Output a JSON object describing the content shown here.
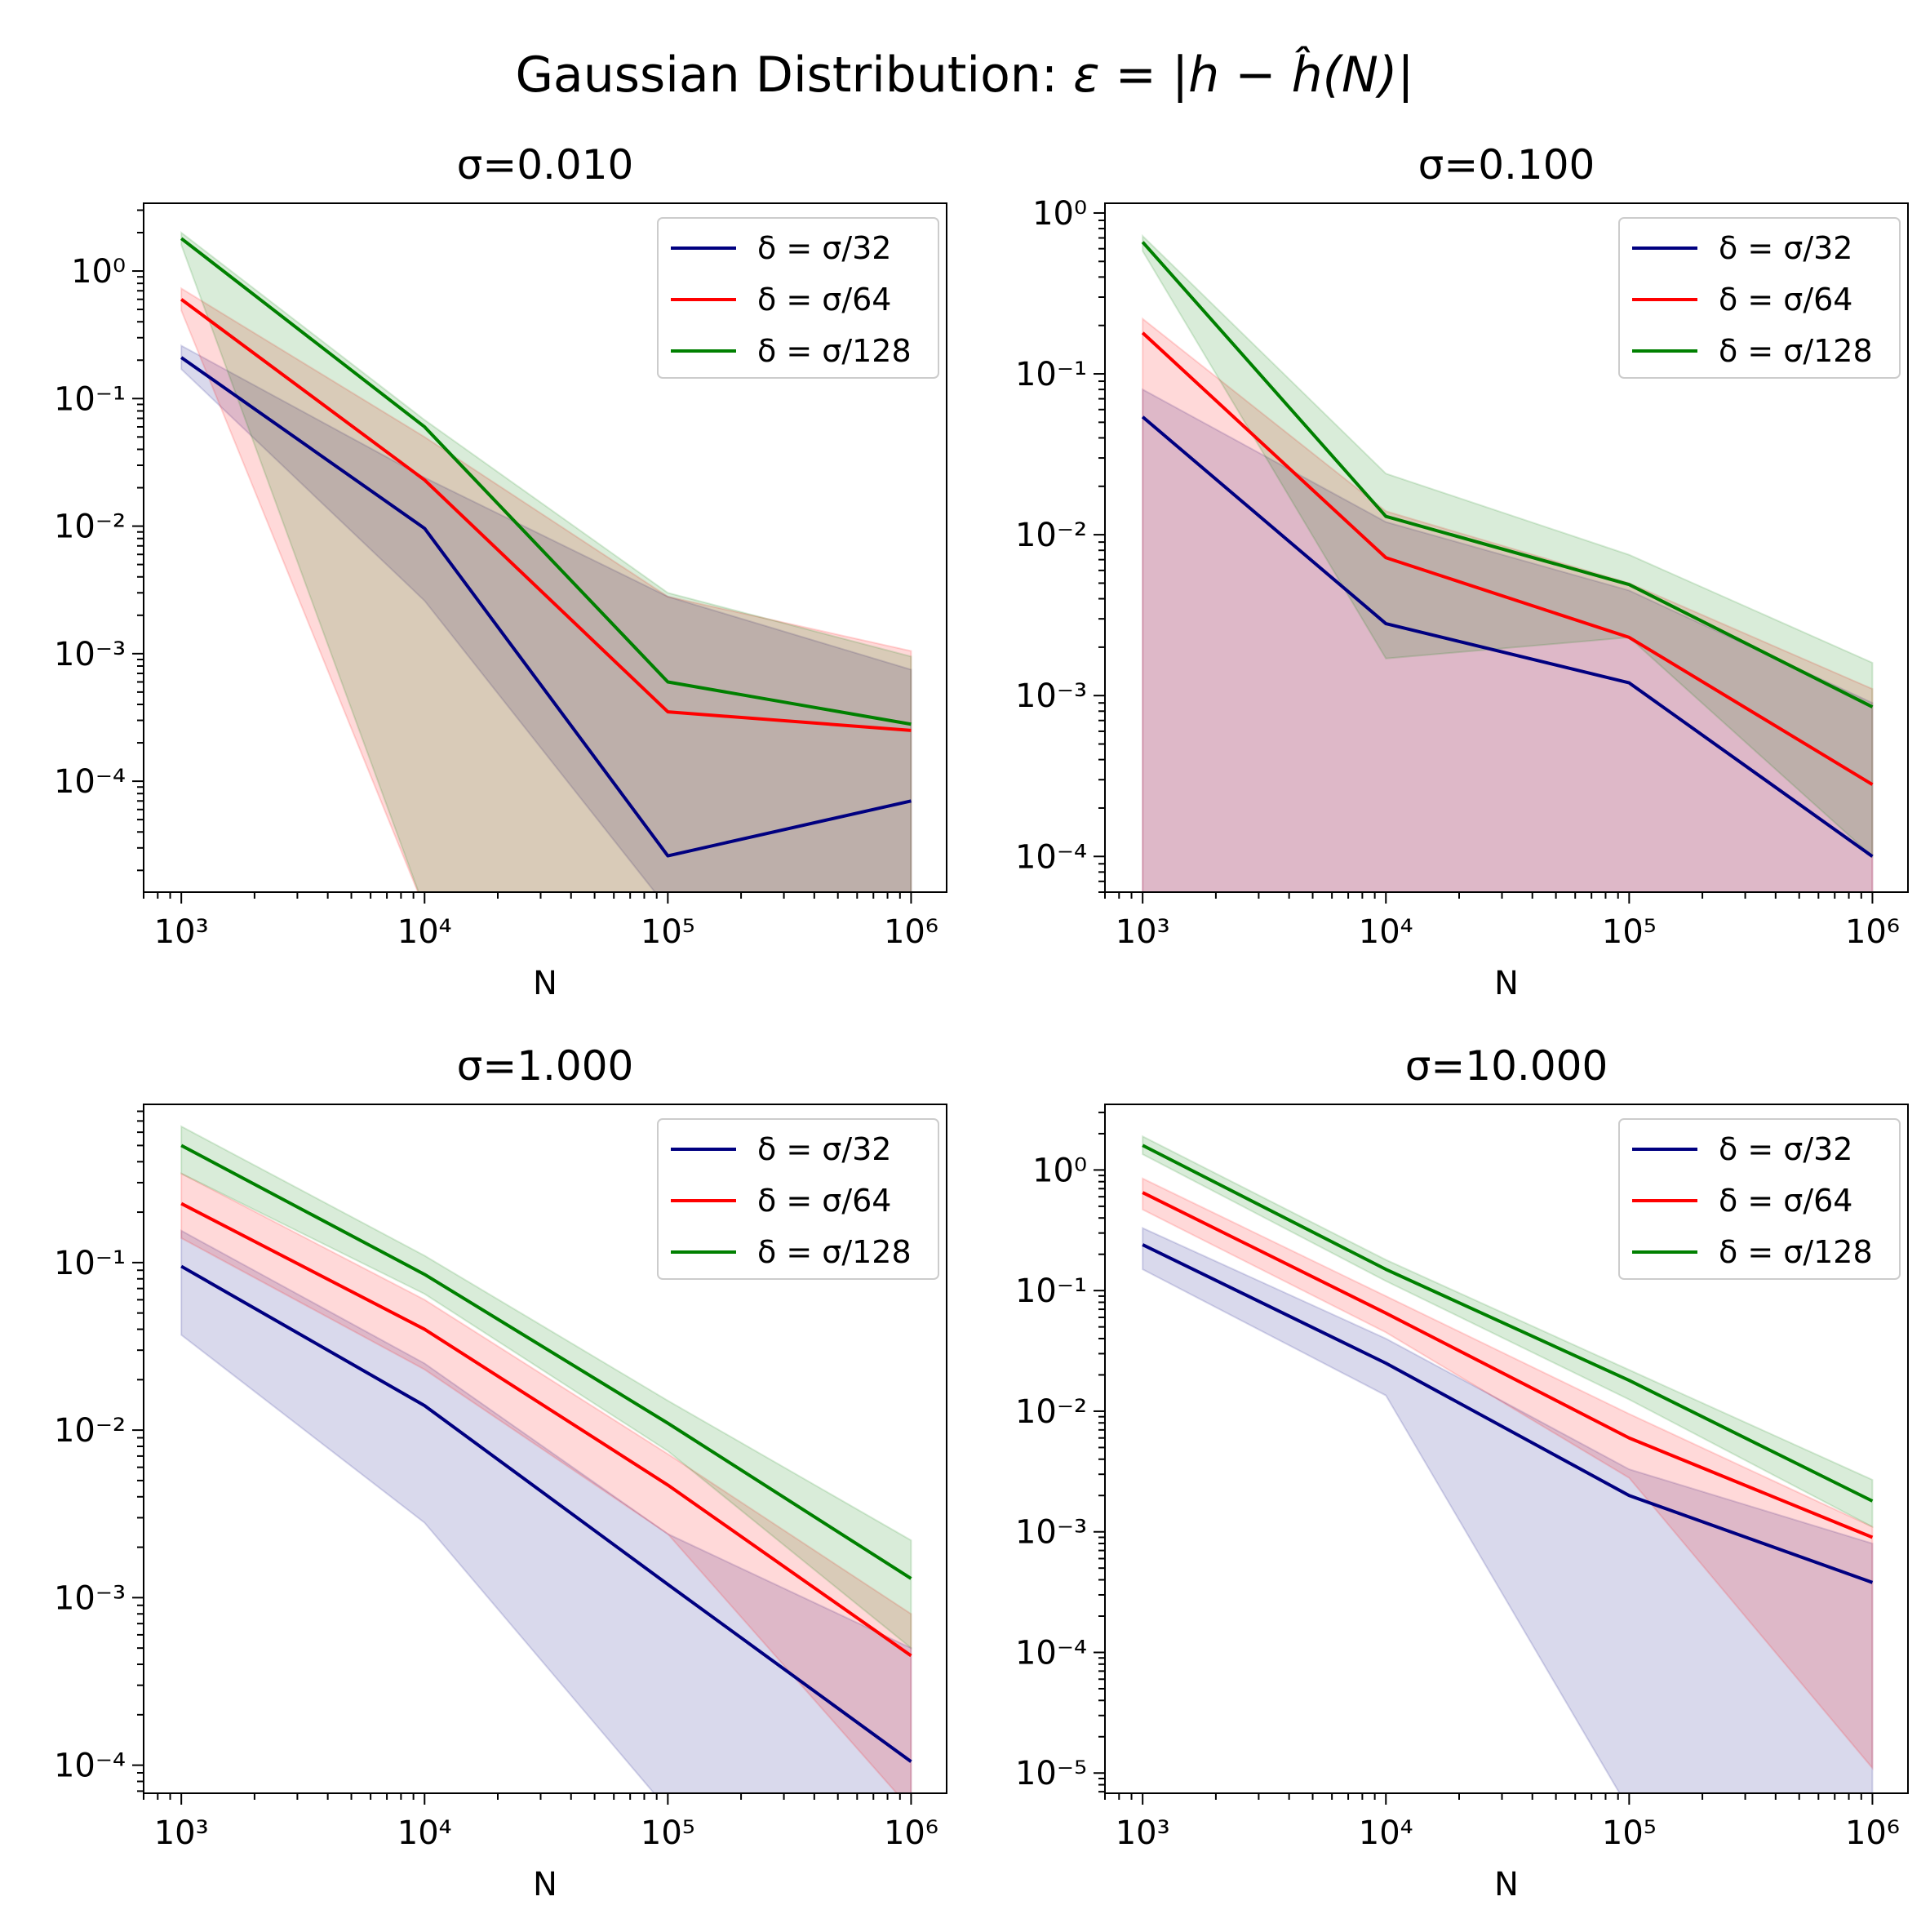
{
  "figure": {
    "title_prefix": "Gaussian Distribution: ",
    "title_math": "ε = |h − ĥ(N)|",
    "xlabel": "N"
  },
  "colors": {
    "d32": "#000080",
    "d64": "#ff0000",
    "d128": "#008000"
  },
  "chart_data": [
    {
      "type": "line",
      "title": "σ=0.010",
      "xscale": "log",
      "yscale": "log",
      "xlabel": "N",
      "xlim": [
        700,
        1400000
      ],
      "ylim": [
        1.35e-05,
        3.4
      ],
      "x": [
        1000,
        10000,
        100000,
        1000000
      ],
      "xticks": [
        1000,
        10000,
        100000,
        1000000
      ],
      "yticks": [
        0.0001,
        0.001,
        0.01,
        0.1,
        1
      ],
      "legend_position": "upper right",
      "series": [
        {
          "name": "δ = σ/32",
          "color": "#000080",
          "values": [
            0.21,
            0.0096,
            2.6e-05,
            7e-05
          ],
          "band_low": [
            0.17,
            0.0026,
            0,
            0
          ],
          "band_high": [
            0.26,
            0.024,
            0.0028,
            0.00075
          ]
        },
        {
          "name": "δ = σ/64",
          "color": "#ff0000",
          "values": [
            0.6,
            0.023,
            0.00035,
            0.00025
          ],
          "band_low": [
            0.49,
            0,
            0,
            0
          ],
          "band_high": [
            0.73,
            0.05,
            0.0028,
            0.00105
          ]
        },
        {
          "name": "δ = σ/128",
          "color": "#008000",
          "values": [
            1.8,
            0.06,
            0.0006,
            0.00028
          ],
          "band_low": [
            1.6,
            0,
            0,
            0
          ],
          "band_high": [
            2.0,
            0.068,
            0.003,
            0.00095
          ]
        }
      ]
    },
    {
      "type": "line",
      "title": "σ=0.100",
      "xscale": "log",
      "yscale": "log",
      "xlabel": "N",
      "xlim": [
        700,
        1400000
      ],
      "ylim": [
        6e-05,
        1.15
      ],
      "x": [
        1000,
        10000,
        100000,
        1000000
      ],
      "xticks": [
        1000,
        10000,
        100000,
        1000000
      ],
      "yticks": [
        0.0001,
        0.001,
        0.01,
        0.1,
        1
      ],
      "legend_position": "upper right",
      "series": [
        {
          "name": "δ = σ/32",
          "color": "#000080",
          "values": [
            0.054,
            0.0028,
            0.0012,
            0.0001
          ],
          "band_low": [
            0,
            0,
            0,
            0
          ],
          "band_high": [
            0.08,
            0.012,
            0.0045,
            0.0009
          ]
        },
        {
          "name": "δ = σ/64",
          "color": "#ff0000",
          "values": [
            0.18,
            0.0072,
            0.0023,
            0.00028
          ],
          "band_low": [
            0,
            0,
            0,
            0
          ],
          "band_high": [
            0.22,
            0.014,
            0.005,
            0.0011
          ]
        },
        {
          "name": "δ = σ/128",
          "color": "#008000",
          "values": [
            0.66,
            0.013,
            0.0049,
            0.00085
          ],
          "band_low": [
            0.58,
            0.0017,
            0.0023,
            0.0001
          ],
          "band_high": [
            0.72,
            0.024,
            0.0075,
            0.0016
          ]
        }
      ]
    },
    {
      "type": "line",
      "title": "σ=1.000",
      "xscale": "log",
      "yscale": "log",
      "xlabel": "N",
      "xlim": [
        700,
        1400000
      ],
      "ylim": [
        6.8e-05,
        0.88
      ],
      "x": [
        1000,
        10000,
        100000,
        1000000
      ],
      "xticks": [
        1000,
        10000,
        100000,
        1000000
      ],
      "yticks": [
        0.0001,
        0.001,
        0.01,
        0.1
      ],
      "legend_position": "upper right",
      "series": [
        {
          "name": "δ = σ/32",
          "color": "#000080",
          "values": [
            0.095,
            0.014,
            0.0012,
            0.000105
          ],
          "band_low": [
            0.037,
            0.0028,
            0,
            0
          ],
          "band_high": [
            0.155,
            0.025,
            0.0024,
            0.0005
          ]
        },
        {
          "name": "δ = σ/64",
          "color": "#ff0000",
          "values": [
            0.225,
            0.04,
            0.0047,
            0.00045
          ],
          "band_low": [
            0.14,
            0.023,
            0.0024,
            0
          ],
          "band_high": [
            0.34,
            0.06,
            0.0072,
            0.0008
          ]
        },
        {
          "name": "δ = σ/128",
          "color": "#008000",
          "values": [
            0.5,
            0.085,
            0.011,
            0.0013
          ],
          "band_low": [
            0.34,
            0.065,
            0.0075,
            0.0005
          ],
          "band_high": [
            0.65,
            0.11,
            0.015,
            0.0022
          ]
        }
      ]
    },
    {
      "type": "line",
      "title": "σ=10.000",
      "xscale": "log",
      "yscale": "log",
      "xlabel": "N",
      "xlim": [
        700,
        1400000
      ],
      "ylim": [
        6.8e-06,
        3.5
      ],
      "x": [
        1000,
        10000,
        100000,
        1000000
      ],
      "xticks": [
        1000,
        10000,
        100000,
        1000000
      ],
      "yticks": [
        1e-05,
        0.0001,
        0.001,
        0.01,
        0.1,
        1
      ],
      "legend_position": "upper right",
      "series": [
        {
          "name": "δ = σ/32",
          "color": "#000080",
          "values": [
            0.24,
            0.025,
            0.002,
            0.00038
          ],
          "band_low": [
            0.15,
            0.0135,
            0,
            0
          ],
          "band_high": [
            0.33,
            0.04,
            0.0033,
            0.0008
          ]
        },
        {
          "name": "δ = σ/64",
          "color": "#ff0000",
          "values": [
            0.65,
            0.065,
            0.006,
            0.0009
          ],
          "band_low": [
            0.47,
            0.045,
            0.0028,
            1.1e-05
          ],
          "band_high": [
            0.85,
            0.09,
            0.0095,
            0.0011
          ]
        },
        {
          "name": "δ = σ/128",
          "color": "#008000",
          "values": [
            1.6,
            0.15,
            0.018,
            0.0018
          ],
          "band_low": [
            1.35,
            0.12,
            0.0125,
            0.0011
          ],
          "band_high": [
            1.9,
            0.18,
            0.022,
            0.0027
          ]
        }
      ]
    }
  ]
}
